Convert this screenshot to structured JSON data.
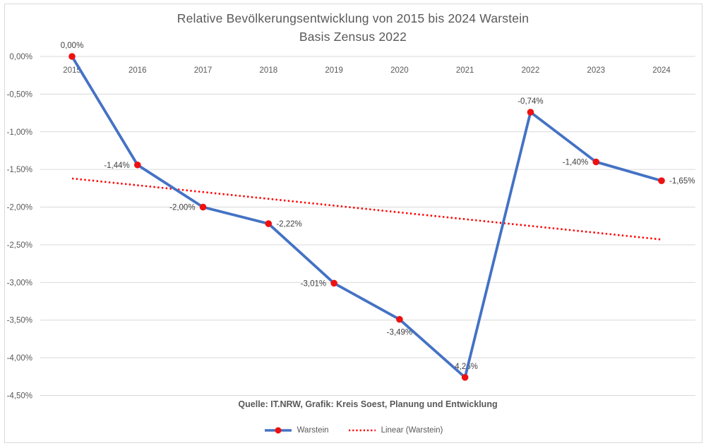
{
  "chart": {
    "title_line1": "Relative Bevölkerungsentwicklung von 2015 bis 2024 Warstein",
    "title_line2": "Basis Zensus 2022",
    "source": "Quelle: IT.NRW, Grafik: Kreis Soest, Planung und Entwicklung",
    "legend": [
      {
        "label": "Warstein",
        "swatch": "blue-line-red-marker"
      },
      {
        "label": "Linear (Warstein)",
        "swatch": "red-dotted-line"
      }
    ]
  },
  "chart_data": {
    "type": "line",
    "title": "Relative Bevölkerungsentwicklung von 2015 bis 2024 Warstein",
    "subtitle": "Basis Zensus 2022",
    "categories": [
      "2015",
      "2016",
      "2017",
      "2018",
      "2019",
      "2020",
      "2021",
      "2022",
      "2023",
      "2024"
    ],
    "series": [
      {
        "name": "Warstein",
        "values": [
          0.0,
          -1.44,
          -2.0,
          -2.22,
          -3.01,
          -3.49,
          -4.26,
          -0.74,
          -1.4,
          -1.65
        ],
        "data_labels": [
          "0,00%",
          "-1,44%",
          "-2,00%",
          "-2,22%",
          "-3,01%",
          "-3,49%",
          "-4,26%",
          "-0,74%",
          "-1,40%",
          "-1,65%"
        ],
        "label_positions": [
          "above",
          "left",
          "left",
          "right",
          "left",
          "below",
          "above",
          "above",
          "left",
          "right"
        ],
        "line_color": "#4472c4",
        "marker_color": "#ee1111"
      }
    ],
    "trendline": {
      "name": "Linear (Warstein)",
      "start_value": -1.62,
      "end_value": -2.43,
      "color": "#ff0000",
      "style": "dotted"
    },
    "y_axis": {
      "min": -4.5,
      "max": 0,
      "step": 0.5,
      "tick_labels": [
        "0,00%",
        "-0,50%",
        "-1,00%",
        "-1,50%",
        "-2,00%",
        "-2,50%",
        "-3,00%",
        "-3,50%",
        "-4,00%",
        "-4,50%"
      ]
    },
    "x_axis": {
      "labels_position": "top-below-zero-line"
    },
    "grid": true,
    "gridline_color": "#d9d9d9",
    "text_color": "#595959",
    "data_label_color": "#404040",
    "legend_position": "bottom",
    "source": "Quelle: IT.NRW, Grafik: Kreis Soest, Planung und Entwicklung"
  }
}
